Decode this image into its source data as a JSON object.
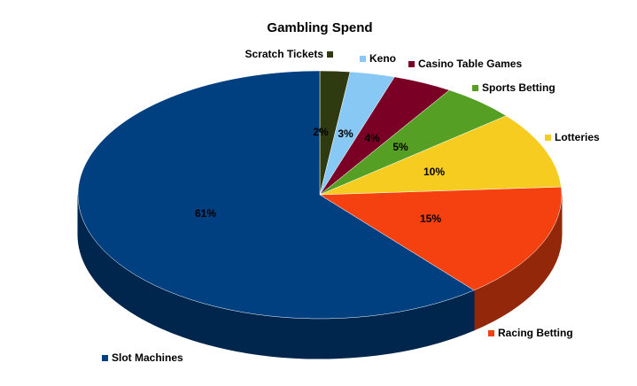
{
  "chart_data": {
    "type": "pie",
    "title": "Gambling Spend",
    "categories": [
      "Scratch Tickets",
      "Keno",
      "Casino Table Games",
      "Sports Betting",
      "Lotteries",
      "Racing Betting",
      "Slot Machines"
    ],
    "values": [
      2,
      3,
      4,
      5,
      10,
      15,
      61
    ],
    "value_labels": [
      "2%",
      "3%",
      "4%",
      "5%",
      "10%",
      "15%",
      "61%"
    ],
    "colors": [
      "#2f3a10",
      "#87c8f5",
      "#7a0026",
      "#55a024",
      "#f5cc1f",
      "#f5410f",
      "#004080"
    ]
  }
}
